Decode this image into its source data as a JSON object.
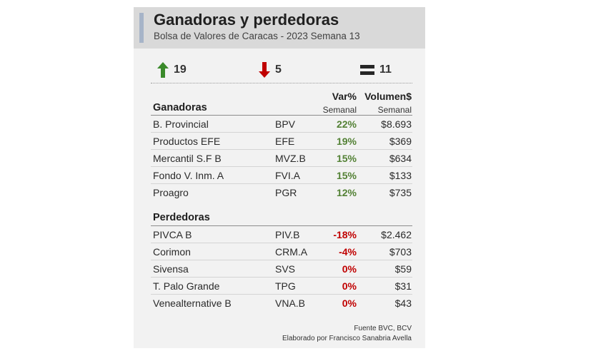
{
  "header": {
    "title": "Ganadoras y perdedoras",
    "subtitle": "Bolsa de Valores de Caracas - 2023 Semana 13"
  },
  "summary": {
    "up_count": "19",
    "down_count": "5",
    "unchanged_count": "11",
    "up_color": "#3a8a2a",
    "down_color": "#c00000"
  },
  "columns": {
    "var_label": "Var%",
    "var_sub": "Semanal",
    "vol_label": "Volumen$",
    "vol_sub": "Semanal"
  },
  "gainers": {
    "label": "Ganadoras",
    "rows": [
      {
        "name": "B. Provincial",
        "ticker": "BPV",
        "var": "22%",
        "vol": "$8.693"
      },
      {
        "name": "Productos EFE",
        "ticker": "EFE",
        "var": "19%",
        "vol": "$369"
      },
      {
        "name": "Mercantil S.F B",
        "ticker": "MVZ.B",
        "var": "15%",
        "vol": "$634"
      },
      {
        "name": "Fondo V. Inm. A",
        "ticker": "FVI.A",
        "var": "15%",
        "vol": "$133"
      },
      {
        "name": "Proagro",
        "ticker": "PGR",
        "var": "12%",
        "vol": "$735"
      }
    ]
  },
  "losers": {
    "label": "Perdedoras",
    "rows": [
      {
        "name": "PIVCA B",
        "ticker": "PIV.B",
        "var": "-18%",
        "vol": "$2.462"
      },
      {
        "name": "Corimon",
        "ticker": "CRM.A",
        "var": "-4%",
        "vol": "$703"
      },
      {
        "name": "Sivensa",
        "ticker": "SVS",
        "var": "0%",
        "vol": "$59"
      },
      {
        "name": "T. Palo Grande",
        "ticker": "TPG",
        "var": "0%",
        "vol": "$31"
      },
      {
        "name": "Venealternative B",
        "ticker": "VNA.B",
        "var": "0%",
        "vol": "$43"
      }
    ]
  },
  "footer": {
    "source": "Fuente BVC, BCV",
    "author": "Elaborado por Francisco Sanabria Avella"
  }
}
